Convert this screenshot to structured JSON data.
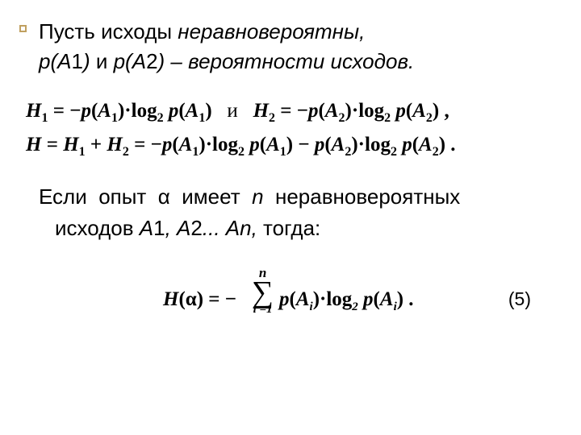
{
  "colors": {
    "bullet_border": "#c0a060",
    "text": "#000000",
    "background": "#ffffff"
  },
  "typography": {
    "body_family": "Arial",
    "body_size_pt": 20,
    "formula_family": "Times New Roman",
    "formula_size_pt": 19,
    "formula_weight": "bold"
  },
  "intro": {
    "line1_a": "Пусть исходы ",
    "line1_b": "неравновероятны,",
    "line2_a": "р(А",
    "line2_b": "1",
    "line2_c": ")",
    "line2_d": " и ",
    "line2_e": "р(А",
    "line2_f": "2",
    "line2_g": ") – вероятности исходов."
  },
  "formula1": {
    "line1": {
      "h1": "H",
      "s1": "1",
      "eq1": " = −",
      "p1": "p",
      "opn1": "(",
      "a1": "A",
      "as1": "1",
      "cls1": ")·log",
      "lg1": "2",
      "sp1": " ",
      "p1b": "p",
      "opn1b": "(",
      "a1b": "A",
      "as1b": "1",
      "cls1b": ")",
      "and": "и",
      "h2": "H",
      "s2": "2",
      "eq2": " = −",
      "p2": "p",
      "opn2": "(",
      "a2": "A",
      "as2": "2",
      "cls2": ")·log",
      "lg2": "2",
      "sp2": " ",
      "p2b": "p",
      "opn2b": "(",
      "a2b": "A",
      "as2b": "2",
      "cls2b": ") ,"
    },
    "line2": {
      "h": "H",
      "eq": " = ",
      "h1": "H",
      "s1": "1",
      "plus": " + ",
      "h2": "H",
      "s2": "2",
      "eq2": " = −",
      "p1": "p",
      "o1": "(",
      "a1": "A",
      "as1": "1",
      "c1": ")·log",
      "l1": "2",
      "sp1": " ",
      "p1b": "p",
      "o1b": "(",
      "a1b": "A",
      "as1b": "1",
      "c1b": ") − ",
      "p2": "p",
      "o2": "(",
      "a2": "A",
      "as2": "2",
      "c2": ")·log",
      "l2": "2",
      "sp2": " ",
      "p2b": "p",
      "o2b": "(",
      "a2b": "A",
      "as2b": "2",
      "c2b": ") ."
    }
  },
  "para2": {
    "l1a": "Если  опыт  α  имеет  ",
    "l1b": "n",
    "l1c": "  неравновероятных",
    "l2a": "исходов ",
    "l2b": "А",
    "l2c": "1",
    "l2d": ", А",
    "l2e": "2",
    "l2f": "... Аn,",
    "l2g": " тогда:"
  },
  "formula2": {
    "lhs_h": "H",
    "lhs_open": "(α) = −",
    "upper": "n",
    "sigma": "∑",
    "lower": "i =1",
    "rhs_p": "p",
    "rhs_o": "(",
    "rhs_a": "A",
    "rhs_i": "i",
    "rhs_c": ")·log",
    "rhs_l2": "2",
    "rhs_sp": " ",
    "rhs_p2": "p",
    "rhs_o2": "(",
    "rhs_a2": "A",
    "rhs_i2": "i",
    "rhs_c2": ") .",
    "num": "(5)"
  }
}
